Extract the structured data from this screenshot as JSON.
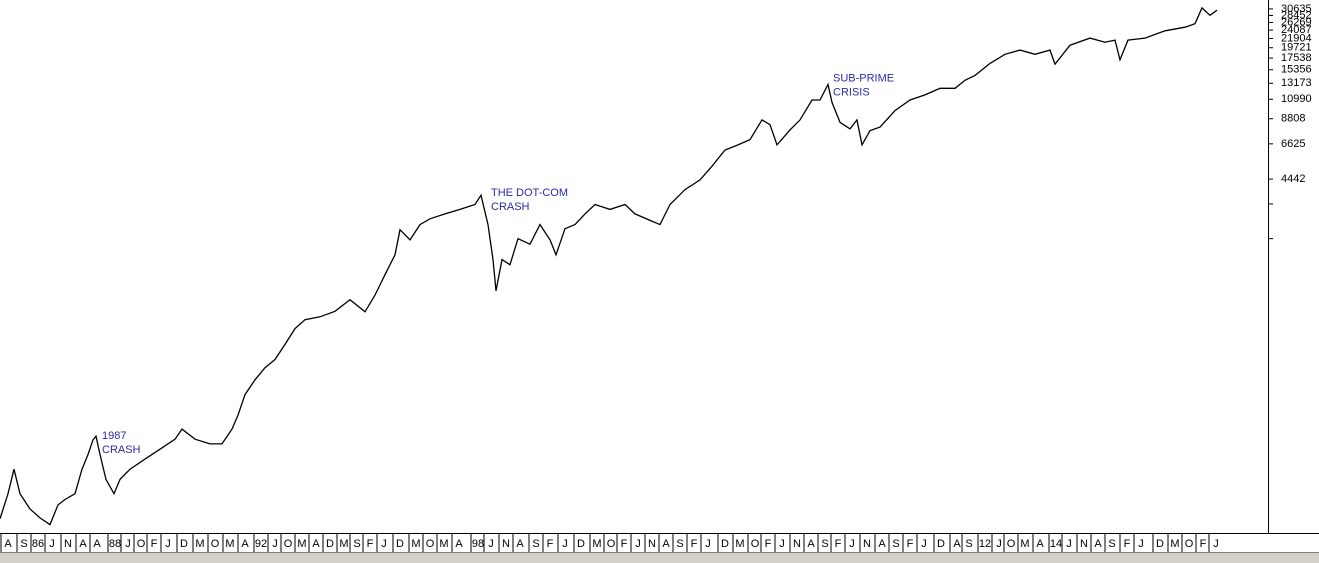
{
  "chart_data": {
    "type": "line",
    "log_scale": true,
    "color": "#000000",
    "annotations": [
      {
        "lines": [
          "1987",
          "CRASH"
        ],
        "x": 100,
        "value": 240
      },
      {
        "lines": [
          "THE DOT-COM",
          "CRASH"
        ],
        "x": 489,
        "value": 3780
      },
      {
        "lines": [
          "SUB-PRIME",
          "CRISIS"
        ],
        "x": 831,
        "value": 13900
      }
    ],
    "xlim": [
      0,
      1268
    ],
    "ylim": [
      80,
      33900
    ],
    "yticks": [
      30635,
      28452,
      26269,
      24087,
      21904,
      19721,
      17538,
      15356,
      13173,
      10990,
      8808,
      6625,
      4442
    ],
    "minor_yticks": [
      3350,
      2259
    ],
    "xticks": [
      {
        "value": 8,
        "label": "A"
      },
      {
        "value": 24,
        "label": "S"
      },
      {
        "value": 38,
        "label": "86"
      },
      {
        "value": 52,
        "label": "J"
      },
      {
        "value": 68,
        "label": "N"
      },
      {
        "value": 83,
        "label": "A"
      },
      {
        "value": 97,
        "label": "A"
      },
      {
        "value": 115,
        "label": "88"
      },
      {
        "value": 128,
        "label": "J"
      },
      {
        "value": 141,
        "label": "O"
      },
      {
        "value": 154,
        "label": "F"
      },
      {
        "value": 168,
        "label": "J"
      },
      {
        "value": 184,
        "label": "D"
      },
      {
        "value": 200,
        "label": "M"
      },
      {
        "value": 215,
        "label": "O"
      },
      {
        "value": 230,
        "label": "M"
      },
      {
        "value": 245,
        "label": "A"
      },
      {
        "value": 261,
        "label": "92"
      },
      {
        "value": 275,
        "label": "J"
      },
      {
        "value": 288,
        "label": "O"
      },
      {
        "value": 302,
        "label": "M"
      },
      {
        "value": 316,
        "label": "A"
      },
      {
        "value": 330,
        "label": "D"
      },
      {
        "value": 344,
        "label": "M"
      },
      {
        "value": 357,
        "label": "S"
      },
      {
        "value": 370,
        "label": "F"
      },
      {
        "value": 384,
        "label": "J"
      },
      {
        "value": 400,
        "label": "D"
      },
      {
        "value": 416,
        "label": "M"
      },
      {
        "value": 430,
        "label": "O"
      },
      {
        "value": 444,
        "label": "M"
      },
      {
        "value": 459,
        "label": "A"
      },
      {
        "value": 478,
        "label": "98"
      },
      {
        "value": 491,
        "label": "J"
      },
      {
        "value": 506,
        "label": "N"
      },
      {
        "value": 520,
        "label": "A"
      },
      {
        "value": 536,
        "label": "S"
      },
      {
        "value": 550,
        "label": "F"
      },
      {
        "value": 565,
        "label": "J"
      },
      {
        "value": 581,
        "label": "D"
      },
      {
        "value": 597,
        "label": "M"
      },
      {
        "value": 611,
        "label": "O"
      },
      {
        "value": 624,
        "label": "F"
      },
      {
        "value": 638,
        "label": "J"
      },
      {
        "value": 652,
        "label": "N"
      },
      {
        "value": 666,
        "label": "A"
      },
      {
        "value": 680,
        "label": "S"
      },
      {
        "value": 694,
        "label": "F"
      },
      {
        "value": 708,
        "label": "J"
      },
      {
        "value": 725,
        "label": "D"
      },
      {
        "value": 740,
        "label": "M"
      },
      {
        "value": 755,
        "label": "O"
      },
      {
        "value": 768,
        "label": "F"
      },
      {
        "value": 782,
        "label": "J"
      },
      {
        "value": 797,
        "label": "N"
      },
      {
        "value": 811,
        "label": "A"
      },
      {
        "value": 825,
        "label": "S"
      },
      {
        "value": 838,
        "label": "F"
      },
      {
        "value": 852,
        "label": "J"
      },
      {
        "value": 867,
        "label": "N"
      },
      {
        "value": 882,
        "label": "A"
      },
      {
        "value": 896,
        "label": "S"
      },
      {
        "value": 910,
        "label": "F"
      },
      {
        "value": 924,
        "label": "J"
      },
      {
        "value": 941,
        "label": "D"
      },
      {
        "value": 957,
        "label": "A"
      },
      {
        "value": 969,
        "label": "S"
      },
      {
        "value": 985,
        "label": "12"
      },
      {
        "value": 999,
        "label": "J"
      },
      {
        "value": 1011,
        "label": "O"
      },
      {
        "value": 1025,
        "label": "M"
      },
      {
        "value": 1040,
        "label": "A"
      },
      {
        "value": 1056,
        "label": "14"
      },
      {
        "value": 1069,
        "label": "J"
      },
      {
        "value": 1084,
        "label": "N"
      },
      {
        "value": 1098,
        "label": "A"
      },
      {
        "value": 1112,
        "label": "S"
      },
      {
        "value": 1127,
        "label": "F"
      },
      {
        "value": 1141,
        "label": "J"
      },
      {
        "value": 1160,
        "label": "D"
      },
      {
        "value": 1175,
        "label": "M"
      },
      {
        "value": 1189,
        "label": "O"
      },
      {
        "value": 1203,
        "label": "F"
      },
      {
        "value": 1216,
        "label": "J"
      }
    ],
    "x": [
      0,
      8,
      14,
      20,
      30,
      40,
      50,
      58,
      65,
      75,
      82,
      88,
      93,
      96,
      100,
      106,
      114,
      120,
      130,
      145,
      160,
      175,
      182,
      195,
      210,
      222,
      232,
      238,
      245,
      255,
      265,
      275,
      285,
      295,
      305,
      320,
      335,
      350,
      365,
      375,
      385,
      395,
      400,
      410,
      420,
      430,
      445,
      460,
      475,
      481,
      488,
      493,
      496,
      502,
      510,
      518,
      530,
      540,
      550,
      556,
      565,
      575,
      585,
      595,
      610,
      625,
      635,
      650,
      660,
      670,
      685,
      700,
      712,
      725,
      738,
      750,
      762,
      770,
      777,
      790,
      800,
      812,
      820,
      828,
      832,
      840,
      850,
      857,
      862,
      870,
      880,
      895,
      910,
      925,
      940,
      955,
      965,
      975,
      990,
      1005,
      1020,
      1035,
      1050,
      1055,
      1070,
      1090,
      1105,
      1115,
      1120,
      1128,
      1145,
      1165,
      1185,
      1195,
      1202,
      1210,
      1217
    ],
    "values": [
      94,
      125,
      165,
      125,
      105,
      95,
      88,
      110,
      117,
      125,
      165,
      195,
      230,
      240,
      195,
      147,
      125,
      147,
      165,
      185,
      207,
      232,
      260,
      232,
      220,
      220,
      260,
      305,
      385,
      455,
      522,
      573,
      680,
      814,
      900,
      930,
      990,
      1130,
      985,
      1190,
      1500,
      1880,
      2500,
      2230,
      2650,
      2830,
      2990,
      3150,
      3330,
      3700,
      2650,
      1780,
      1250,
      1780,
      1680,
      2260,
      2120,
      2650,
      2230,
      1880,
      2530,
      2650,
      2990,
      3330,
      3150,
      3330,
      2990,
      2780,
      2650,
      3330,
      3940,
      4400,
      5140,
      6180,
      6550,
      6950,
      8690,
      8230,
      6550,
      7760,
      8690,
      10900,
      10900,
      13000,
      10600,
      8460,
      7850,
      8690,
      6550,
      7700,
      8010,
      9660,
      10900,
      11550,
      12450,
      12450,
      13620,
      14400,
      16500,
      18300,
      19200,
      18300,
      19200,
      16350,
      20300,
      22000,
      21000,
      21500,
      17200,
      21500,
      22000,
      23900,
      24900,
      25900,
      31000,
      28500,
      30200
    ]
  }
}
